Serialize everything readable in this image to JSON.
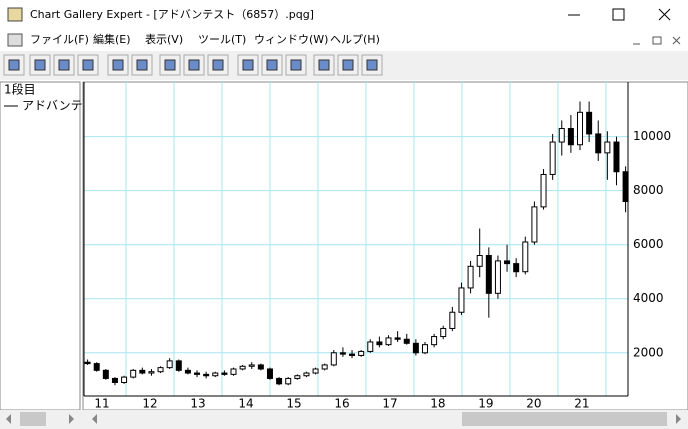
{
  "window": {
    "title": "Chart Gallery Expert - [アドバンテスト（6857）.pqg]",
    "menu": [
      "ファイル(F)",
      "編集(E)",
      "表示(V)",
      "ツール(T)",
      "ウィンドウ(W)",
      "ヘルプ(H)"
    ],
    "panel_title": "1段目"
  },
  "chart_data": {
    "type": "candlestick",
    "series": [
      {
        "name": "アドバンテ",
        "color": "#000000",
        "x": [
          11.2,
          11.39,
          11.58,
          11.77,
          11.96,
          12.15,
          12.34,
          12.53,
          12.72,
          12.91,
          13.1,
          13.29,
          13.48,
          13.67,
          13.86,
          14.05,
          14.24,
          14.43,
          14.62,
          14.81,
          15.0,
          15.19,
          15.38,
          15.57,
          15.76,
          15.95,
          16.14,
          16.33,
          16.52,
          16.71,
          16.9,
          17.09,
          17.28,
          17.47,
          17.66,
          17.85,
          18.04,
          18.23,
          18.42,
          18.61,
          18.8,
          18.99,
          19.18,
          19.37,
          19.56,
          19.75,
          19.94,
          20.13,
          20.32,
          20.51,
          20.7,
          20.89,
          21.08,
          21.27,
          21.46,
          21.65,
          21.84,
          22.03,
          22.22,
          22.41
        ],
        "open": [
          1650,
          1600,
          1350,
          1050,
          900,
          1100,
          1350,
          1250,
          1300,
          1450,
          1700,
          1350,
          1250,
          1200,
          1150,
          1250,
          1200,
          1400,
          1500,
          1550,
          1400,
          1050,
          850,
          1050,
          1150,
          1250,
          1400,
          1550,
          2000,
          1950,
          1900,
          2050,
          2400,
          2300,
          2550,
          2500,
          2350,
          2000,
          2300,
          2600,
          2900,
          3500,
          4400,
          5200,
          5600,
          4200,
          5400,
          5300,
          5000,
          6100,
          7400,
          8600,
          9800,
          10300,
          9700,
          10900,
          10100,
          9400,
          9800,
          8700
        ],
        "high": [
          1750,
          1650,
          1400,
          1100,
          1150,
          1400,
          1450,
          1400,
          1500,
          1800,
          1750,
          1450,
          1350,
          1300,
          1300,
          1350,
          1450,
          1550,
          1650,
          1600,
          1450,
          1100,
          1100,
          1200,
          1300,
          1450,
          1600,
          2100,
          2200,
          2100,
          2100,
          2500,
          2600,
          2650,
          2800,
          2700,
          2500,
          2400,
          2700,
          3000,
          3700,
          4600,
          5400,
          6600,
          5900,
          5600,
          6000,
          5500,
          6300,
          7600,
          8800,
          10100,
          10600,
          10800,
          11300,
          11300,
          10600,
          10200,
          10000,
          8900
        ],
        "low": [
          1550,
          1300,
          1000,
          800,
          850,
          1050,
          1200,
          1150,
          1250,
          1400,
          1300,
          1200,
          1100,
          1050,
          1100,
          1150,
          1150,
          1350,
          1400,
          1350,
          1000,
          800,
          800,
          1000,
          1100,
          1200,
          1350,
          1500,
          1850,
          1800,
          1850,
          2000,
          2200,
          2250,
          2400,
          2300,
          1900,
          1950,
          2200,
          2500,
          2800,
          3400,
          4200,
          4800,
          3300,
          4000,
          5000,
          4800,
          4900,
          6000,
          7300,
          8400,
          9300,
          9400,
          9500,
          9800,
          9100,
          8400,
          8200,
          7200
        ],
        "close": [
          1600,
          1350,
          1050,
          900,
          1100,
          1350,
          1250,
          1300,
          1450,
          1700,
          1350,
          1250,
          1200,
          1150,
          1250,
          1200,
          1400,
          1500,
          1550,
          1400,
          1050,
          850,
          1050,
          1150,
          1250,
          1400,
          1550,
          2000,
          1950,
          1900,
          2050,
          2400,
          2300,
          2550,
          2500,
          2350,
          2000,
          2300,
          2600,
          2900,
          3500,
          4400,
          5200,
          5600,
          4200,
          5400,
          5300,
          5000,
          6100,
          7400,
          8600,
          9800,
          10300,
          9700,
          10900,
          10100,
          9400,
          9800,
          8700,
          7600
        ]
      }
    ],
    "xlim": [
      11.125,
      22.46
    ],
    "xticks": [
      {
        "value": 11.5,
        "label": "11"
      },
      {
        "value": 12.5,
        "label": "12"
      },
      {
        "value": 13.5,
        "label": "13"
      },
      {
        "value": 14.5,
        "label": "14"
      },
      {
        "value": 15.5,
        "label": "15"
      },
      {
        "value": 16.5,
        "label": "16"
      },
      {
        "value": 17.5,
        "label": "17"
      },
      {
        "value": 18.5,
        "label": "18"
      },
      {
        "value": 19.5,
        "label": "19"
      },
      {
        "value": 20.5,
        "label": "20"
      },
      {
        "value": 21.5,
        "label": "21"
      }
    ],
    "xgrid": [
      12,
      13,
      14,
      15,
      16,
      17,
      18,
      19,
      20,
      21,
      22
    ],
    "ylim": [
      400,
      11800
    ],
    "yticks": [
      2000,
      4000,
      6000,
      8000,
      10000
    ],
    "grid": true,
    "grid_color": "#a8e6f0"
  }
}
